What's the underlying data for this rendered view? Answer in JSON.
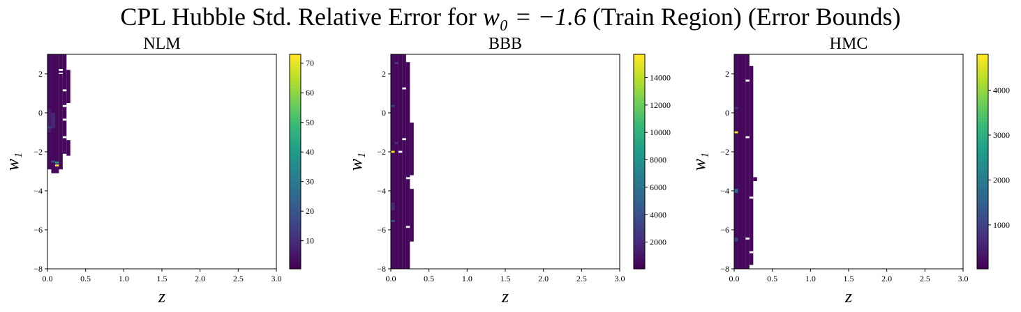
{
  "figure": {
    "suptitle_pre": "CPL Hubble Std. Relative Error for ",
    "suptitle_math": "w₀ = −1.6",
    "suptitle_post": " (Train Region) (Error Bounds)"
  },
  "chart_data": [
    {
      "type": "heatmap",
      "title": "NLM",
      "xlabel": "z",
      "ylabel": "w₁",
      "xlim": [
        0.0,
        3.0
      ],
      "ylim": [
        -8,
        3
      ],
      "xticks": [
        0.0,
        0.5,
        1.0,
        1.5,
        2.0,
        2.5,
        3.0
      ],
      "xtick_labels": [
        "0.0",
        "0.5",
        "1.0",
        "1.5",
        "2.0",
        "2.5",
        "3.0"
      ],
      "yticks": [
        -8,
        -6,
        -4,
        -2,
        0,
        2
      ],
      "ytick_labels": [
        "−8",
        "−6",
        "−4",
        "−2",
        "0",
        "2"
      ],
      "colormap": "viridis",
      "colorbar": {
        "min": 0.5,
        "max": 73,
        "ticks": [
          10,
          20,
          30,
          40,
          50,
          60,
          70
        ],
        "tick_labels": [
          "10",
          "20",
          "30",
          "40",
          "50",
          "60",
          "70"
        ]
      },
      "regions": [
        {
          "x0": 0.0,
          "x1": 0.05,
          "y0": -2.9,
          "y1": 3.0,
          "value": 2
        },
        {
          "x0": 0.05,
          "x1": 0.15,
          "y0": -3.1,
          "y1": 3.0,
          "value": 2
        },
        {
          "x0": 0.15,
          "x1": 0.2,
          "y0": -2.9,
          "y1": 3.0,
          "value": 2
        },
        {
          "x0": 0.2,
          "x1": 0.25,
          "y0": -2.1,
          "y1": 3.0,
          "value": 2
        },
        {
          "x0": 0.25,
          "x1": 0.3,
          "y0": -2.2,
          "y1": -1.4,
          "value": 2
        },
        {
          "x0": 0.25,
          "x1": 0.3,
          "y0": 0.5,
          "y1": 2.2,
          "value": 2
        },
        {
          "x0": 0.0,
          "x1": 0.05,
          "y0": -1.0,
          "y1": 0.2,
          "value": 6
        },
        {
          "x0": 0.05,
          "x1": 0.1,
          "y0": -0.8,
          "y1": 0.0,
          "value": 8
        },
        {
          "x0": 0.05,
          "x1": 0.1,
          "y0": -2.55,
          "y1": -2.45,
          "value": 18
        },
        {
          "x0": 0.1,
          "x1": 0.15,
          "y0": -2.75,
          "y1": -2.65,
          "value": 73
        },
        {
          "x0": 0.1,
          "x1": 0.15,
          "y0": -2.6,
          "y1": -2.5,
          "value": 40
        },
        {
          "x0": 0.0,
          "x1": 0.05,
          "y0": -0.8,
          "y1": -0.7,
          "value": 14
        }
      ],
      "gaps": [
        {
          "x0": 0.15,
          "x1": 0.2,
          "y0": 2.15,
          "y1": 2.25
        },
        {
          "x0": 0.15,
          "x1": 0.2,
          "y0": 2.0,
          "y1": 2.05
        },
        {
          "x0": 0.2,
          "x1": 0.25,
          "y0": 0.3,
          "y1": 0.4
        },
        {
          "x0": 0.2,
          "x1": 0.25,
          "y0": -1.3,
          "y1": -1.2
        },
        {
          "x0": 0.2,
          "x1": 0.25,
          "y0": -0.4,
          "y1": -0.3
        },
        {
          "x0": 0.2,
          "x1": 0.25,
          "y0": 1.1,
          "y1": 1.2
        }
      ]
    },
    {
      "type": "heatmap",
      "title": "BBB",
      "xlabel": "z",
      "ylabel": "w₁",
      "xlim": [
        0.0,
        3.0
      ],
      "ylim": [
        -8,
        3
      ],
      "xticks": [
        0.0,
        0.5,
        1.0,
        1.5,
        2.0,
        2.5,
        3.0
      ],
      "xtick_labels": [
        "0.0",
        "0.5",
        "1.0",
        "1.5",
        "2.0",
        "2.5",
        "3.0"
      ],
      "yticks": [
        -8,
        -6,
        -4,
        -2,
        0,
        2
      ],
      "ytick_labels": [
        "−8",
        "−6",
        "−4",
        "−2",
        "0",
        "2"
      ],
      "colormap": "viridis",
      "colorbar": {
        "min": 50,
        "max": 15700,
        "ticks": [
          2000,
          4000,
          6000,
          8000,
          10000,
          12000,
          14000
        ],
        "tick_labels": [
          "2000",
          "4000",
          "6000",
          "8000",
          "10000",
          "12000",
          "14000"
        ]
      },
      "regions": [
        {
          "x0": 0.0,
          "x1": 0.05,
          "y0": -8.0,
          "y1": 3.0,
          "value": 400
        },
        {
          "x0": 0.05,
          "x1": 0.1,
          "y0": -8.0,
          "y1": 3.0,
          "value": 300
        },
        {
          "x0": 0.1,
          "x1": 0.15,
          "y0": -8.0,
          "y1": 3.0,
          "value": 300
        },
        {
          "x0": 0.15,
          "x1": 0.2,
          "y0": -8.0,
          "y1": 3.0,
          "value": 300
        },
        {
          "x0": 0.2,
          "x1": 0.25,
          "y0": -8.0,
          "y1": 2.6,
          "value": 300
        },
        {
          "x0": 0.25,
          "x1": 0.3,
          "y0": -6.6,
          "y1": -3.9,
          "value": 300
        },
        {
          "x0": 0.25,
          "x1": 0.3,
          "y0": -3.2,
          "y1": -0.5,
          "value": 300
        },
        {
          "x0": 0.0,
          "x1": 0.05,
          "y0": -2.05,
          "y1": -1.95,
          "value": 15700
        },
        {
          "x0": 0.0,
          "x1": 0.05,
          "y0": -5.6,
          "y1": -5.5,
          "value": 4200
        },
        {
          "x0": 0.0,
          "x1": 0.05,
          "y0": 0.3,
          "y1": 0.4,
          "value": 3000
        },
        {
          "x0": 0.05,
          "x1": 0.1,
          "y0": 2.5,
          "y1": 2.6,
          "value": 2500
        },
        {
          "x0": 0.0,
          "x1": 0.05,
          "y0": -5.0,
          "y1": -4.6,
          "value": 1800
        },
        {
          "x0": 0.05,
          "x1": 0.1,
          "y0": -1.6,
          "y1": -1.5,
          "value": 2200
        }
      ],
      "gaps": [
        {
          "x0": 0.1,
          "x1": 0.15,
          "y0": -2.05,
          "y1": -1.95
        },
        {
          "x0": 0.15,
          "x1": 0.2,
          "y0": -1.4,
          "y1": -1.3
        },
        {
          "x0": 0.15,
          "x1": 0.2,
          "y0": 1.2,
          "y1": 1.3
        },
        {
          "x0": 0.2,
          "x1": 0.25,
          "y0": -5.9,
          "y1": -5.8
        },
        {
          "x0": 0.2,
          "x1": 0.25,
          "y0": -3.4,
          "y1": -3.3
        }
      ]
    },
    {
      "type": "heatmap",
      "title": "HMC",
      "xlabel": "z",
      "ylabel": "w₁",
      "xlim": [
        0.0,
        3.0
      ],
      "ylim": [
        -8,
        3
      ],
      "xticks": [
        0.0,
        0.5,
        1.0,
        1.5,
        2.0,
        2.5,
        3.0
      ],
      "xtick_labels": [
        "0.0",
        "0.5",
        "1.0",
        "1.5",
        "2.0",
        "2.5",
        "3.0"
      ],
      "yticks": [
        -8,
        -6,
        -4,
        -2,
        0,
        2
      ],
      "ytick_labels": [
        "−8",
        "−6",
        "−4",
        "−2",
        "0",
        "2"
      ],
      "colormap": "viridis",
      "colorbar": {
        "min": 20,
        "max": 4800,
        "ticks": [
          1000,
          2000,
          3000,
          4000
        ],
        "tick_labels": [
          "1000",
          "2000",
          "3000",
          "4000"
        ]
      },
      "regions": [
        {
          "x0": 0.0,
          "x1": 0.05,
          "y0": -8.0,
          "y1": 3.0,
          "value": 150
        },
        {
          "x0": 0.05,
          "x1": 0.15,
          "y0": -8.0,
          "y1": 3.0,
          "value": 120
        },
        {
          "x0": 0.15,
          "x1": 0.2,
          "y0": -8.0,
          "y1": 3.0,
          "value": 120
        },
        {
          "x0": 0.2,
          "x1": 0.25,
          "y0": -7.8,
          "y1": 2.4,
          "value": 120
        },
        {
          "x0": 0.25,
          "x1": 0.3,
          "y0": -3.5,
          "y1": -3.3,
          "value": 120
        },
        {
          "x0": 0.0,
          "x1": 0.05,
          "y0": -1.05,
          "y1": -0.95,
          "value": 4800
        },
        {
          "x0": 0.0,
          "x1": 0.05,
          "y0": -4.1,
          "y1": -3.9,
          "value": 1800
        },
        {
          "x0": 0.0,
          "x1": 0.05,
          "y0": -6.6,
          "y1": -6.4,
          "value": 900
        },
        {
          "x0": 0.0,
          "x1": 0.05,
          "y0": 0.2,
          "y1": 0.3,
          "value": 700
        }
      ],
      "gaps": [
        {
          "x0": 0.15,
          "x1": 0.2,
          "y0": -6.5,
          "y1": -6.4
        },
        {
          "x0": 0.15,
          "x1": 0.2,
          "y0": -1.3,
          "y1": -1.2
        },
        {
          "x0": 0.15,
          "x1": 0.2,
          "y0": 1.6,
          "y1": 1.7
        },
        {
          "x0": 0.2,
          "x1": 0.25,
          "y0": -7.2,
          "y1": -7.1
        },
        {
          "x0": 0.2,
          "x1": 0.25,
          "y0": -4.4,
          "y1": -4.3
        }
      ]
    }
  ]
}
